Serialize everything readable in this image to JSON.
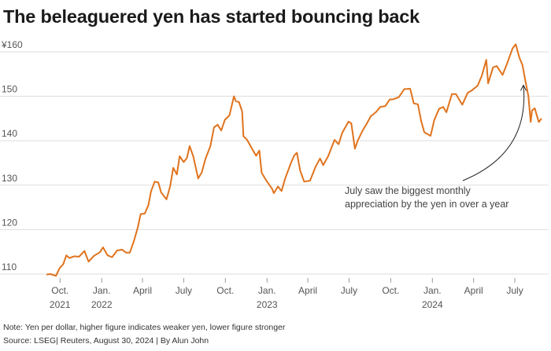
{
  "title": "The beleaguered yen has started bouncing back",
  "note": "Note: Yen per dollar, higher figure indicates weaker yen, lower figure stronger",
  "source": "Source: LSEG| Reuters, August 30, 2024 | By Alun John",
  "colors": {
    "line": "#e0731d",
    "grid": "#dddddd",
    "axis": "#999999"
  },
  "chart_data": {
    "type": "line",
    "title": "The beleaguered yen has started bouncing back",
    "xlabel": "",
    "ylabel": "",
    "ylim": [
      106,
      163
    ],
    "y_ticks": [
      {
        "value": 110,
        "label": "110"
      },
      {
        "value": 120,
        "label": "120"
      },
      {
        "value": 130,
        "label": "130"
      },
      {
        "value": 140,
        "label": "140"
      },
      {
        "value": 150,
        "label": "150"
      },
      {
        "value": 160,
        "label": "¥160"
      }
    ],
    "x_ticks": [
      {
        "date": "2021-10",
        "label": "Oct.",
        "sublabel": "2021"
      },
      {
        "date": "2022-01",
        "label": "Jan.",
        "sublabel": "2022"
      },
      {
        "date": "2022-04",
        "label": "April",
        "sublabel": ""
      },
      {
        "date": "2022-07",
        "label": "July",
        "sublabel": ""
      },
      {
        "date": "2022-10",
        "label": "Oct.",
        "sublabel": ""
      },
      {
        "date": "2023-01",
        "label": "Jan.",
        "sublabel": "2023"
      },
      {
        "date": "2023-04",
        "label": "April",
        "sublabel": ""
      },
      {
        "date": "2023-07",
        "label": "July",
        "sublabel": ""
      },
      {
        "date": "2023-10",
        "label": "Oct.",
        "sublabel": ""
      },
      {
        "date": "2024-01",
        "label": "Jan.",
        "sublabel": "2024"
      },
      {
        "date": "2024-04",
        "label": "April",
        "sublabel": ""
      },
      {
        "date": "2024-07",
        "label": "July",
        "sublabel": ""
      }
    ],
    "grid": true,
    "annotations": [
      {
        "text_lines": [
          "July saw the biggest monthly",
          "appreciation by the yen in over a year"
        ],
        "points_to": "2024-07-20"
      }
    ],
    "series": [
      {
        "name": "",
        "color": "#e0731d",
        "points": [
          [
            "2021-09-01",
            109.9
          ],
          [
            "2021-09-10",
            110.0
          ],
          [
            "2021-09-22",
            109.6
          ],
          [
            "2021-09-30",
            111.3
          ],
          [
            "2021-10-08",
            112.2
          ],
          [
            "2021-10-15",
            114.2
          ],
          [
            "2021-10-22",
            113.6
          ],
          [
            "2021-11-01",
            114.0
          ],
          [
            "2021-11-12",
            113.9
          ],
          [
            "2021-11-24",
            115.2
          ],
          [
            "2021-12-03",
            112.8
          ],
          [
            "2021-12-15",
            114.1
          ],
          [
            "2021-12-28",
            114.9
          ],
          [
            "2022-01-04",
            116.0
          ],
          [
            "2022-01-14",
            114.2
          ],
          [
            "2022-01-24",
            113.8
          ],
          [
            "2022-02-04",
            115.3
          ],
          [
            "2022-02-15",
            115.5
          ],
          [
            "2022-02-24",
            114.8
          ],
          [
            "2022-03-04",
            114.8
          ],
          [
            "2022-03-14",
            117.7
          ],
          [
            "2022-03-22",
            120.6
          ],
          [
            "2022-03-28",
            123.5
          ],
          [
            "2022-04-06",
            123.6
          ],
          [
            "2022-04-14",
            125.5
          ],
          [
            "2022-04-20",
            128.6
          ],
          [
            "2022-04-28",
            130.8
          ],
          [
            "2022-05-06",
            130.6
          ],
          [
            "2022-05-12",
            128.4
          ],
          [
            "2022-05-24",
            126.8
          ],
          [
            "2022-06-01",
            129.7
          ],
          [
            "2022-06-08",
            133.9
          ],
          [
            "2022-06-16",
            132.4
          ],
          [
            "2022-06-22",
            136.5
          ],
          [
            "2022-07-01",
            135.2
          ],
          [
            "2022-07-08",
            136.1
          ],
          [
            "2022-07-14",
            138.8
          ],
          [
            "2022-07-22",
            136.5
          ],
          [
            "2022-08-02",
            131.5
          ],
          [
            "2022-08-10",
            132.9
          ],
          [
            "2022-08-18",
            135.9
          ],
          [
            "2022-08-29",
            138.8
          ],
          [
            "2022-09-06",
            143.0
          ],
          [
            "2022-09-14",
            143.6
          ],
          [
            "2022-09-22",
            142.3
          ],
          [
            "2022-09-30",
            144.7
          ],
          [
            "2022-10-10",
            145.7
          ],
          [
            "2022-10-20",
            150.0
          ],
          [
            "2022-10-24",
            148.9
          ],
          [
            "2022-10-31",
            148.7
          ],
          [
            "2022-11-07",
            146.6
          ],
          [
            "2022-11-10",
            141.0
          ],
          [
            "2022-11-18",
            140.2
          ],
          [
            "2022-11-30",
            138.0
          ],
          [
            "2022-12-08",
            136.6
          ],
          [
            "2022-12-15",
            137.8
          ],
          [
            "2022-12-20",
            132.8
          ],
          [
            "2022-12-30",
            131.1
          ],
          [
            "2023-01-12",
            129.2
          ],
          [
            "2023-01-16",
            128.2
          ],
          [
            "2023-01-25",
            129.7
          ],
          [
            "2023-02-02",
            128.7
          ],
          [
            "2023-02-10",
            131.5
          ],
          [
            "2023-02-22",
            134.8
          ],
          [
            "2023-03-02",
            136.7
          ],
          [
            "2023-03-08",
            137.3
          ],
          [
            "2023-03-15",
            133.3
          ],
          [
            "2023-03-24",
            130.8
          ],
          [
            "2023-04-06",
            131.0
          ],
          [
            "2023-04-18",
            134.1
          ],
          [
            "2023-04-28",
            136.0
          ],
          [
            "2023-05-05",
            134.5
          ],
          [
            "2023-05-16",
            136.5
          ],
          [
            "2023-05-30",
            140.2
          ],
          [
            "2023-06-08",
            139.2
          ],
          [
            "2023-06-16",
            141.8
          ],
          [
            "2023-06-30",
            144.3
          ],
          [
            "2023-07-06",
            143.9
          ],
          [
            "2023-07-14",
            138.2
          ],
          [
            "2023-07-20",
            140.0
          ],
          [
            "2023-07-31",
            142.3
          ],
          [
            "2023-08-10",
            144.0
          ],
          [
            "2023-08-18",
            145.5
          ],
          [
            "2023-08-29",
            146.4
          ],
          [
            "2023-09-08",
            147.6
          ],
          [
            "2023-09-19",
            147.8
          ],
          [
            "2023-09-29",
            149.3
          ],
          [
            "2023-10-06",
            149.3
          ],
          [
            "2023-10-19",
            149.8
          ],
          [
            "2023-10-31",
            151.6
          ],
          [
            "2023-11-13",
            151.7
          ],
          [
            "2023-11-21",
            148.4
          ],
          [
            "2023-11-30",
            148.2
          ],
          [
            "2023-12-07",
            144.6
          ],
          [
            "2023-12-14",
            141.9
          ],
          [
            "2023-12-28",
            141.1
          ],
          [
            "2024-01-05",
            144.6
          ],
          [
            "2024-01-16",
            147.2
          ],
          [
            "2024-01-25",
            147.6
          ],
          [
            "2024-02-01",
            146.4
          ],
          [
            "2024-02-13",
            150.5
          ],
          [
            "2024-02-22",
            150.5
          ],
          [
            "2024-03-07",
            148.1
          ],
          [
            "2024-03-19",
            150.8
          ],
          [
            "2024-03-28",
            151.3
          ],
          [
            "2024-04-10",
            152.4
          ],
          [
            "2024-04-19",
            154.6
          ],
          [
            "2024-04-29",
            158.2
          ],
          [
            "2024-05-03",
            152.9
          ],
          [
            "2024-05-14",
            156.5
          ],
          [
            "2024-05-22",
            156.8
          ],
          [
            "2024-06-04",
            154.8
          ],
          [
            "2024-06-14",
            157.4
          ],
          [
            "2024-06-26",
            160.8
          ],
          [
            "2024-07-03",
            161.7
          ],
          [
            "2024-07-11",
            158.7
          ],
          [
            "2024-07-18",
            157.0
          ],
          [
            "2024-07-24",
            153.6
          ],
          [
            "2024-07-31",
            150.0
          ],
          [
            "2024-08-05",
            144.2
          ],
          [
            "2024-08-08",
            146.8
          ],
          [
            "2024-08-14",
            147.3
          ],
          [
            "2024-08-20",
            145.2
          ],
          [
            "2024-08-23",
            144.2
          ],
          [
            "2024-08-29",
            145.0
          ]
        ]
      }
    ]
  }
}
